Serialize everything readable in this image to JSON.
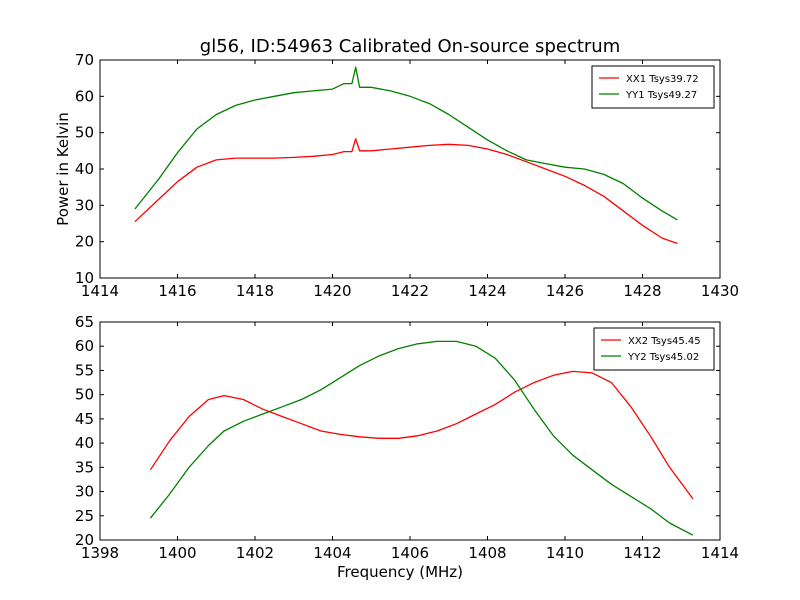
{
  "page": {
    "title": "gl56, ID:54963 Calibrated On-source spectrum"
  },
  "colors": {
    "xx": "#ff0000",
    "yy": "#008000"
  },
  "chart_data": [
    {
      "type": "line",
      "xlabel": "",
      "ylabel": "Power in Kelvin",
      "xlim": [
        1414,
        1430
      ],
      "ylim": [
        10,
        70
      ],
      "xticks": [
        1414,
        1416,
        1418,
        1420,
        1422,
        1424,
        1426,
        1428,
        1430
      ],
      "yticks": [
        10,
        20,
        30,
        40,
        50,
        60,
        70
      ],
      "grid": false,
      "legend": "top-right",
      "series": [
        {
          "name": "XX1 Tsys39.72",
          "color": "#ff0000",
          "x": [
            1414.9,
            1415.5,
            1416.0,
            1416.5,
            1417.0,
            1417.5,
            1418.0,
            1418.5,
            1419.0,
            1419.5,
            1420.0,
            1420.3,
            1420.5,
            1420.6,
            1420.7,
            1421.0,
            1421.5,
            1422.0,
            1422.5,
            1423.0,
            1423.5,
            1424.0,
            1424.5,
            1425.0,
            1425.5,
            1426.0,
            1426.5,
            1427.0,
            1427.5,
            1428.0,
            1428.5,
            1428.9
          ],
          "y": [
            25.5,
            31.5,
            36.5,
            40.5,
            42.5,
            43.0,
            43.0,
            43.0,
            43.2,
            43.5,
            44.0,
            44.8,
            44.8,
            48.3,
            45.0,
            45.0,
            45.5,
            46.0,
            46.5,
            46.8,
            46.5,
            45.5,
            44.0,
            42.0,
            40.0,
            38.0,
            35.5,
            32.5,
            28.5,
            24.5,
            21.0,
            19.5
          ]
        },
        {
          "name": "YY1 Tsys49.27",
          "color": "#008000",
          "x": [
            1414.9,
            1415.5,
            1416.0,
            1416.5,
            1417.0,
            1417.5,
            1418.0,
            1418.5,
            1419.0,
            1419.5,
            1420.0,
            1420.3,
            1420.5,
            1420.6,
            1420.7,
            1421.0,
            1421.5,
            1422.0,
            1422.5,
            1423.0,
            1423.5,
            1424.0,
            1424.5,
            1425.0,
            1425.5,
            1426.0,
            1426.5,
            1427.0,
            1427.5,
            1428.0,
            1428.5,
            1428.9
          ],
          "y": [
            29.0,
            37.0,
            44.5,
            51.0,
            55.0,
            57.5,
            59.0,
            60.0,
            61.0,
            61.5,
            62.0,
            63.5,
            63.5,
            68.0,
            62.5,
            62.5,
            61.5,
            60.0,
            58.0,
            55.0,
            51.5,
            48.0,
            45.0,
            42.5,
            41.5,
            40.5,
            40.0,
            38.5,
            36.0,
            32.0,
            28.5,
            26.0
          ]
        }
      ]
    },
    {
      "type": "line",
      "xlabel": "Frequency (MHz)",
      "ylabel": "",
      "xlim": [
        1398,
        1414
      ],
      "ylim": [
        20,
        65
      ],
      "xticks": [
        1398,
        1400,
        1402,
        1404,
        1406,
        1408,
        1410,
        1412,
        1414
      ],
      "yticks": [
        20,
        25,
        30,
        35,
        40,
        45,
        50,
        55,
        60,
        65
      ],
      "grid": false,
      "legend": "top-right",
      "series": [
        {
          "name": "XX2 Tsys45.45",
          "color": "#ff0000",
          "x": [
            1399.3,
            1399.8,
            1400.3,
            1400.8,
            1401.2,
            1401.7,
            1402.2,
            1402.7,
            1403.2,
            1403.7,
            1404.2,
            1404.7,
            1405.2,
            1405.7,
            1406.2,
            1406.7,
            1407.2,
            1407.7,
            1408.2,
            1408.7,
            1409.2,
            1409.7,
            1410.2,
            1410.7,
            1411.2,
            1411.7,
            1412.2,
            1412.7,
            1413.3
          ],
          "y": [
            34.5,
            40.5,
            45.5,
            49.0,
            49.8,
            49.0,
            47.0,
            45.5,
            44.0,
            42.5,
            41.8,
            41.3,
            41.0,
            41.0,
            41.5,
            42.5,
            44.0,
            46.0,
            48.0,
            50.5,
            52.5,
            54.0,
            54.8,
            54.5,
            52.5,
            47.5,
            41.5,
            35.0,
            28.5
          ]
        },
        {
          "name": "YY2 Tsys45.02",
          "color": "#008000",
          "x": [
            1399.3,
            1399.8,
            1400.3,
            1400.8,
            1401.2,
            1401.7,
            1402.2,
            1402.7,
            1403.2,
            1403.7,
            1404.2,
            1404.7,
            1405.2,
            1405.7,
            1406.2,
            1406.7,
            1407.2,
            1407.7,
            1408.2,
            1408.7,
            1409.2,
            1409.7,
            1410.2,
            1410.7,
            1411.2,
            1411.7,
            1412.2,
            1412.7,
            1413.3
          ],
          "y": [
            24.5,
            29.5,
            35.0,
            39.5,
            42.5,
            44.5,
            46.0,
            47.5,
            49.0,
            51.0,
            53.5,
            56.0,
            58.0,
            59.5,
            60.5,
            61.0,
            61.0,
            60.0,
            57.5,
            53.0,
            47.0,
            41.5,
            37.5,
            34.5,
            31.5,
            29.0,
            26.5,
            23.5,
            21.0
          ]
        }
      ]
    }
  ]
}
